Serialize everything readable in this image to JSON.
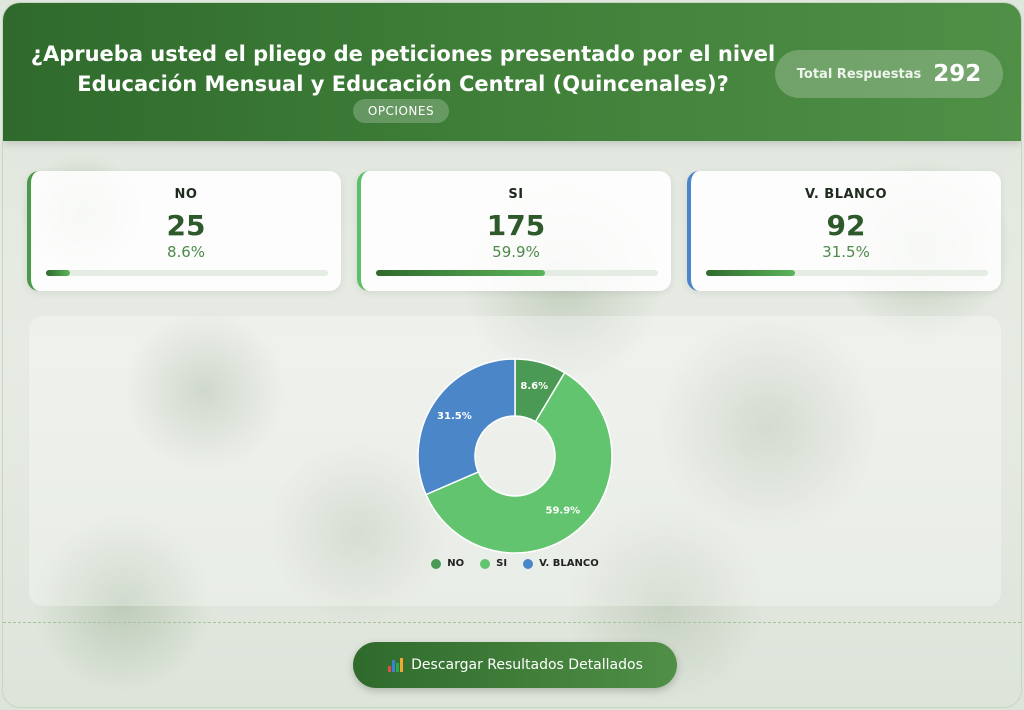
{
  "header": {
    "title_line1": "¿Aprueba usted el pliego de peticiones presentado por el nivel",
    "title_line2": "Educación Mensual y Educación Central (Quincenales)?",
    "options_label": "OPCIONES",
    "total_label": "Total Respuestas",
    "total_value": "292"
  },
  "cards": [
    {
      "label": "NO",
      "value": "25",
      "percent": "8.6%",
      "fraction": 0.086,
      "accent": "#4a9a49"
    },
    {
      "label": "SI",
      "value": "175",
      "percent": "59.9%",
      "fraction": 0.599,
      "accent": "#5cc066"
    },
    {
      "label": "V. BLANCO",
      "value": "92",
      "percent": "31.5%",
      "fraction": 0.315,
      "accent": "#4a86c8"
    }
  ],
  "chart_data": {
    "type": "pie",
    "categories": [
      "NO",
      "SI",
      "V. BLANCO"
    ],
    "values": [
      25,
      175,
      92
    ],
    "data_labels": [
      "8.6%",
      "59.9%",
      "31.5%"
    ],
    "colors": [
      "#4a9a55",
      "#62c46e",
      "#4a86c8"
    ],
    "legend_position": "bottom"
  },
  "footer": {
    "download_label": "Descargar Resultados Detallados",
    "download_icon": "bar-chart-icon"
  }
}
